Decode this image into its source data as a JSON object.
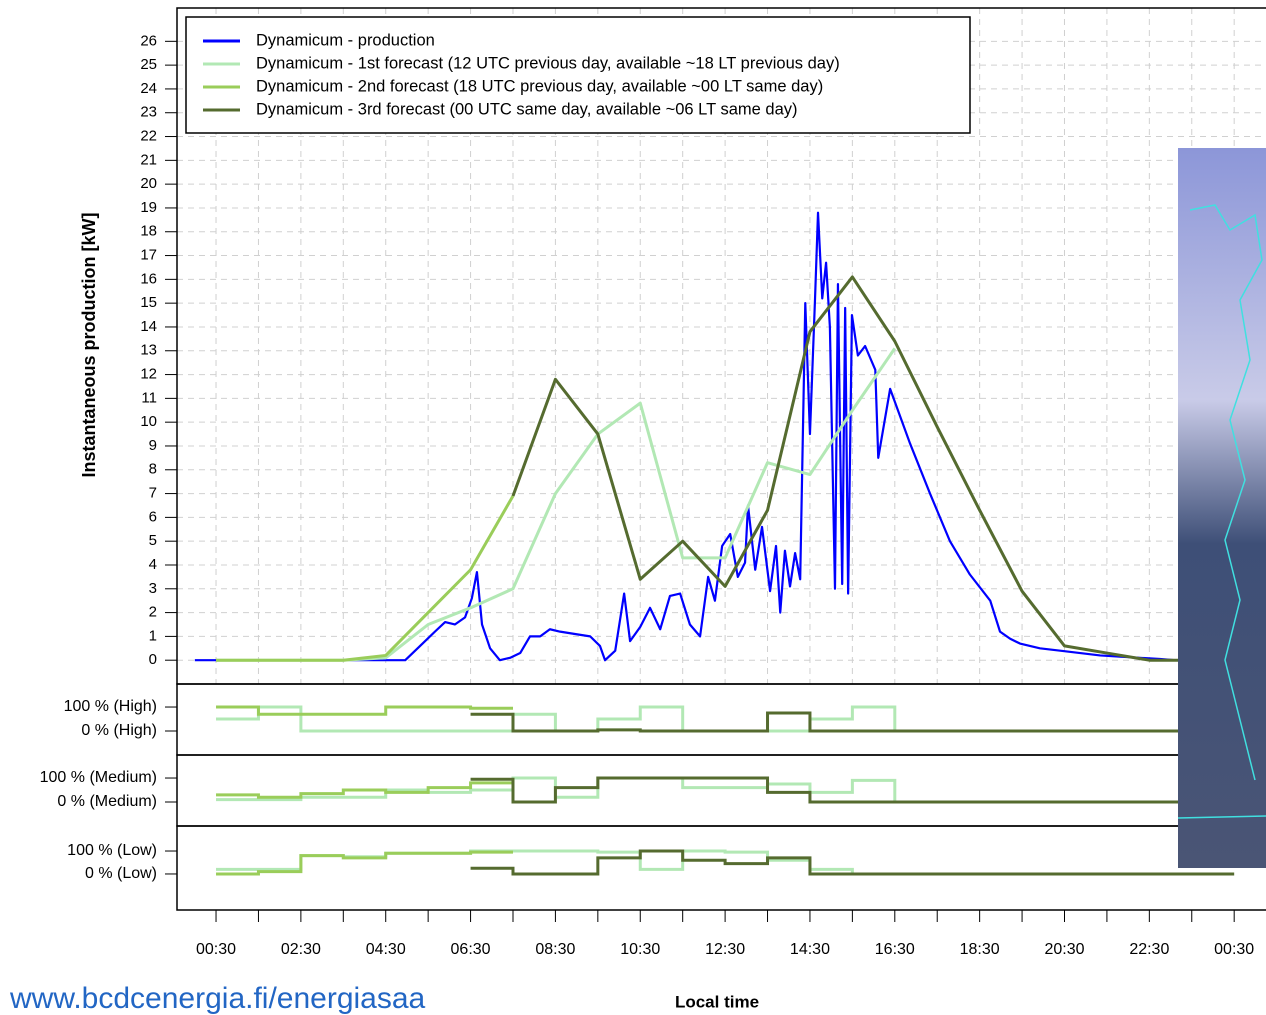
{
  "chart_data": [
    {
      "type": "line",
      "y_label": "Instantaneous production [kW]",
      "x_label": "Local time",
      "xlim": [
        -0.42,
        25.25
      ],
      "ylim": [
        -1.0,
        27.4
      ],
      "yticks": [
        0,
        1,
        2,
        3,
        4,
        5,
        6,
        7,
        8,
        9,
        10,
        11,
        12,
        13,
        14,
        15,
        16,
        17,
        18,
        19,
        20,
        21,
        22,
        23,
        24,
        25,
        26
      ],
      "xticks": [
        {
          "value": 0.5,
          "label": "00:30"
        },
        {
          "value": 2.5,
          "label": "02:30"
        },
        {
          "value": 4.5,
          "label": "04:30"
        },
        {
          "value": 6.5,
          "label": "06:30"
        },
        {
          "value": 8.5,
          "label": "08:30"
        },
        {
          "value": 10.5,
          "label": "10:30"
        },
        {
          "value": 12.5,
          "label": "12:30"
        },
        {
          "value": 14.5,
          "label": "14:30"
        },
        {
          "value": 16.5,
          "label": "16:30"
        },
        {
          "value": 18.5,
          "label": "18:30"
        },
        {
          "value": 20.5,
          "label": "20:30"
        },
        {
          "value": 22.5,
          "label": "22:30"
        },
        {
          "value": 24.5,
          "label": "00:30"
        }
      ],
      "xminor_ticks": [
        1.5,
        3.5,
        5.5,
        7.5,
        9.5,
        11.5,
        13.5,
        15.5,
        17.5,
        19.5,
        21.5,
        23.5
      ],
      "grid": true,
      "legend": "top-left",
      "series": [
        {
          "name": "Dynamicum - production",
          "color": "#0000ff",
          "x": [
            0.0,
            4.96,
            5.31,
            5.66,
            5.9,
            6.13,
            6.37,
            6.53,
            6.65,
            6.77,
            6.96,
            7.19,
            7.43,
            7.67,
            7.9,
            8.14,
            8.37,
            8.61,
            8.96,
            9.32,
            9.55,
            9.67,
            9.91,
            10.12,
            10.26,
            10.5,
            10.73,
            10.97,
            11.2,
            11.44,
            11.67,
            11.91,
            12.1,
            12.26,
            12.43,
            12.62,
            12.8,
            12.97,
            13.04,
            13.21,
            13.37,
            13.56,
            13.7,
            13.8,
            13.91,
            14.03,
            14.15,
            14.27,
            14.39,
            14.5,
            14.62,
            14.69,
            14.79,
            14.88,
            14.97,
            15.09,
            15.16,
            15.26,
            15.33,
            15.4,
            15.49,
            15.63,
            15.8,
            16.04,
            16.11,
            16.39,
            16.86,
            17.33,
            17.8,
            18.27,
            18.75,
            18.98,
            19.22,
            19.45,
            19.92,
            20.4,
            20.87,
            21.34,
            21.81,
            22.28,
            22.75,
            23.11
          ],
          "values": [
            0,
            0,
            0.6,
            1.2,
            1.6,
            1.5,
            1.8,
            2.6,
            3.7,
            1.5,
            0.5,
            0,
            0.1,
            0.3,
            1.0,
            1.0,
            1.3,
            1.2,
            1.1,
            1.0,
            0.6,
            0,
            0.4,
            2.8,
            0.8,
            1.4,
            2.2,
            1.3,
            2.7,
            2.8,
            1.5,
            1.0,
            3.5,
            2.5,
            4.8,
            5.3,
            3.5,
            4.1,
            6.5,
            3.8,
            5.6,
            2.9,
            4.8,
            2.0,
            4.6,
            3.1,
            4.5,
            3.4,
            15.0,
            9.5,
            15.2,
            18.8,
            15.2,
            16.7,
            14.0,
            3.0,
            15.8,
            3.2,
            14.8,
            2.8,
            14.5,
            12.8,
            13.2,
            12.2,
            8.5,
            11.4,
            9.1,
            7.0,
            5.0,
            3.6,
            2.5,
            1.2,
            0.9,
            0.7,
            0.5,
            0.4,
            0.3,
            0.2,
            0.15,
            0.1,
            0.05,
            0
          ]
        },
        {
          "name": "Dynamicum - 1st forecast (12 UTC previous day, available ~18 LT previous day)",
          "color": "#b2e8b4",
          "x": [
            0.5,
            1.5,
            2.5,
            3.5,
            4.5,
            5.5,
            6.5,
            7.5,
            8.5,
            9.5,
            10.5,
            11.5,
            12.5,
            13.5,
            14.5,
            15.5,
            16.5
          ],
          "values": [
            0,
            0,
            0,
            0,
            0.1,
            1.5,
            2.2,
            3.0,
            7.0,
            9.5,
            10.8,
            4.3,
            4.3,
            8.3,
            7.8,
            10.5,
            13.1
          ]
        },
        {
          "name": "Dynamicum - 2nd forecast (18 UTC previous day, available ~00 LT same day)",
          "color": "#9acd5a",
          "x": [
            0.5,
            1.5,
            2.5,
            3.5,
            4.5,
            5.5,
            6.5,
            7.5
          ],
          "values": [
            0,
            0,
            0,
            0,
            0.2,
            2.0,
            3.8,
            6.9
          ]
        },
        {
          "name": "Dynamicum - 3rd forecast (00 UTC same day, available ~06 LT same day)",
          "color": "#556b2f",
          "x": [
            7.5,
            8.5,
            9.5,
            10.5,
            11.5,
            12.5,
            13.5,
            14.5,
            15.5,
            16.5,
            17.5,
            18.5,
            19.5,
            20.5,
            21.5,
            22.5,
            23.5,
            24.5
          ],
          "values": [
            6.9,
            11.8,
            9.5,
            3.4,
            5.0,
            3.1,
            6.3,
            13.8,
            16.1,
            13.4,
            9.8,
            6.3,
            2.9,
            0.6,
            0.3,
            0,
            0,
            0
          ]
        }
      ]
    },
    {
      "type": "step",
      "ylim": [
        -100,
        196
      ],
      "yticks": [
        {
          "value": 100,
          "label": "100 % (High)"
        },
        {
          "value": 0,
          "label": "0 % (High)"
        }
      ],
      "series": [
        {
          "color": "#b2e8b4",
          "x": [
            0.5,
            1.5,
            2.5,
            4.5,
            6.5,
            7.5,
            8.5,
            9.5,
            10.5,
            11.5,
            13.5,
            14.5,
            15.5,
            16.5,
            17.5
          ],
          "values": [
            50,
            100,
            0,
            0,
            0,
            70,
            0,
            50,
            100,
            0,
            0,
            50,
            100,
            0,
            0
          ]
        },
        {
          "color": "#9acd5a",
          "x": [
            0.5,
            1.5,
            4.5,
            6.5,
            7.5
          ],
          "values": [
            100,
            70,
            100,
            95,
            95
          ]
        },
        {
          "color": "#556b2f",
          "x": [
            6.5,
            7.5,
            9.5,
            10.5,
            13.5,
            14.5,
            24.5
          ],
          "values": [
            70,
            0,
            5,
            0,
            75,
            0,
            0
          ]
        }
      ]
    },
    {
      "type": "step",
      "ylim": [
        -100,
        196
      ],
      "yticks": [
        {
          "value": 100,
          "label": "100 % (Medium)"
        },
        {
          "value": 0,
          "label": "0 % (Medium)"
        }
      ],
      "series": [
        {
          "color": "#b2e8b4",
          "x": [
            0.5,
            2.5,
            4.5,
            5.5,
            6.5,
            7.5,
            8.5,
            9.5,
            11.5,
            13.5,
            14.5,
            15.5,
            16.5,
            17.5
          ],
          "values": [
            10,
            20,
            50,
            40,
            50,
            100,
            20,
            100,
            60,
            75,
            40,
            90,
            0,
            0
          ]
        },
        {
          "color": "#9acd5a",
          "x": [
            0.5,
            1.5,
            2.5,
            3.5,
            4.5,
            5.5,
            6.5,
            7.5
          ],
          "values": [
            30,
            20,
            35,
            50,
            40,
            60,
            80,
            80
          ]
        },
        {
          "color": "#556b2f",
          "x": [
            6.5,
            7.5,
            8.5,
            9.5,
            11.5,
            13.5,
            14.5,
            24.5
          ],
          "values": [
            95,
            0,
            60,
            100,
            100,
            40,
            0,
            0
          ]
        }
      ]
    },
    {
      "type": "step",
      "ylim": [
        -157,
        209
      ],
      "yticks": [
        {
          "value": 100,
          "label": "100 % (Low)"
        },
        {
          "value": 0,
          "label": "0 % (Low)"
        }
      ],
      "series": [
        {
          "color": "#b2e8b4",
          "x": [
            0.5,
            1.5,
            2.5,
            3.5,
            4.5,
            6.5,
            8.5,
            9.5,
            10.5,
            11.5,
            12.5,
            13.5,
            14.5,
            15.5,
            16.5
          ],
          "values": [
            20,
            20,
            80,
            75,
            90,
            100,
            100,
            95,
            20,
            100,
            95,
            60,
            20,
            0,
            0
          ]
        },
        {
          "color": "#9acd5a",
          "x": [
            0.5,
            1.5,
            2.5,
            3.5,
            4.5,
            6.5,
            7.5
          ],
          "values": [
            0,
            10,
            80,
            70,
            90,
            95,
            95
          ]
        },
        {
          "color": "#556b2f",
          "x": [
            6.5,
            7.5,
            8.5,
            9.5,
            10.5,
            11.5,
            12.5,
            13.5,
            14.5,
            24.5
          ],
          "values": [
            25,
            0,
            0,
            70,
            100,
            60,
            45,
            70,
            0,
            0
          ]
        }
      ]
    }
  ],
  "footer": {
    "url": "www.bcdcenergia.fi/energiasaa"
  }
}
